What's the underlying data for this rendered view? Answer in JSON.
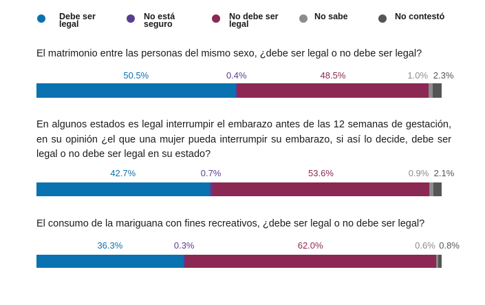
{
  "chart_data": [
    {
      "type": "stacked-bar",
      "title": "El matrimonio entre las personas del mismo sexo, ¿debe ser legal o no debe ser legal?",
      "series": [
        {
          "name": "Debe ser legal",
          "color": "#0a72b0",
          "values": [
            50.5
          ],
          "value_labels": [
            "50.5%"
          ]
        },
        {
          "name": "No está seguro",
          "color": "#5a3d8f",
          "values": [
            0.4
          ],
          "value_labels": [
            "0.4%"
          ]
        },
        {
          "name": "No debe ser legal",
          "color": "#8b2853",
          "values": [
            48.5
          ],
          "value_labels": [
            "48.5%"
          ]
        },
        {
          "name": "No sabe",
          "color": "#8c8c8c",
          "values": [
            1.0
          ],
          "value_labels": [
            "1.0%"
          ]
        },
        {
          "name": "No contestó",
          "color": "#555555",
          "values": [
            2.3
          ],
          "value_labels": [
            "2.3%"
          ]
        }
      ]
    },
    {
      "type": "stacked-bar",
      "title": "En algunos estados es legal interrumpir el embarazo antes de las 12 semanas de gestación, en su opinión ¿el que una mujer pueda interrumpir su embarazo, si así lo decide, debe ser legal o no debe ser legal en su estado?",
      "series": [
        {
          "name": "Debe ser legal",
          "color": "#0a72b0",
          "values": [
            42.7
          ],
          "value_labels": [
            "42.7%"
          ]
        },
        {
          "name": "No está seguro",
          "color": "#5a3d8f",
          "values": [
            0.7
          ],
          "value_labels": [
            "0.7%"
          ]
        },
        {
          "name": "No debe ser legal",
          "color": "#8b2853",
          "values": [
            53.6
          ],
          "value_labels": [
            "53.6%"
          ]
        },
        {
          "name": "No sabe",
          "color": "#8c8c8c",
          "values": [
            0.9
          ],
          "value_labels": [
            "0.9%"
          ]
        },
        {
          "name": "No contestó",
          "color": "#555555",
          "values": [
            2.1
          ],
          "value_labels": [
            "2.1%"
          ]
        }
      ]
    },
    {
      "type": "stacked-bar",
      "title": "El consumo de la mariguana con fines recreativos, ¿debe ser legal o no debe ser legal?",
      "series": [
        {
          "name": "Debe ser legal",
          "color": "#0a72b0",
          "values": [
            36.3
          ],
          "value_labels": [
            "36.3%"
          ]
        },
        {
          "name": "No está seguro",
          "color": "#5a3d8f",
          "values": [
            0.3
          ],
          "value_labels": [
            "0.3%"
          ]
        },
        {
          "name": "No debe ser legal",
          "color": "#8b2853",
          "values": [
            62.0
          ],
          "value_labels": [
            "62.0%"
          ]
        },
        {
          "name": "No sabe",
          "color": "#8c8c8c",
          "values": [
            0.6
          ],
          "value_labels": [
            "0.6%"
          ]
        },
        {
          "name": "No contestó",
          "color": "#555555",
          "values": [
            0.8
          ],
          "value_labels": [
            "0.8%"
          ]
        }
      ]
    }
  ]
}
